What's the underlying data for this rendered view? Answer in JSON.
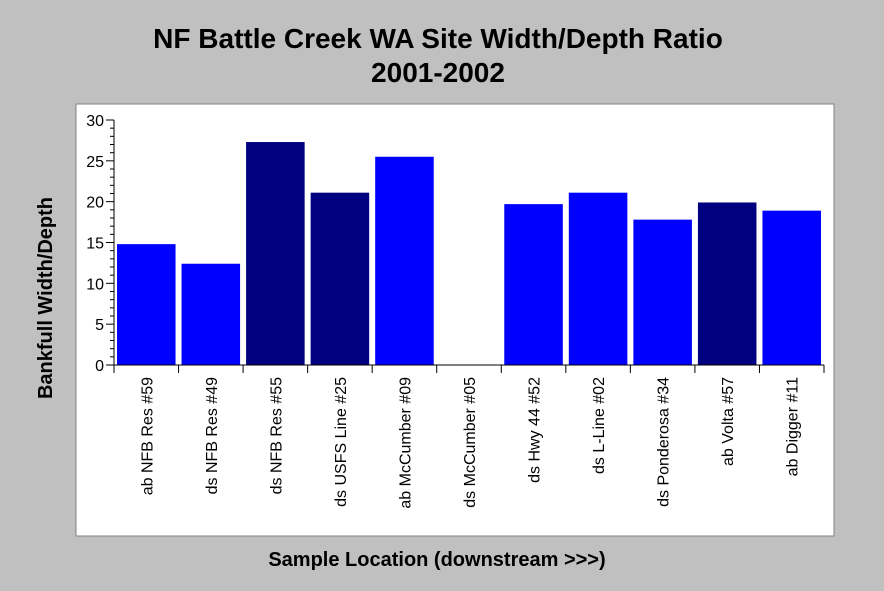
{
  "chart_data": {
    "type": "bar",
    "title_line1": "NF Battle Creek WA Site Width/Depth Ratio",
    "title_line2": "2001-2002",
    "xlabel": "Sample Location (downstream >>>)",
    "ylabel": "Bankfull Width/Depth",
    "ylim": [
      0,
      30
    ],
    "yticks": [
      0,
      5,
      10,
      15,
      20,
      25,
      30
    ],
    "grid": false,
    "legend": "none",
    "categories": [
      "ab NFB Res #59",
      "ds NFB Res #49",
      "ds NFB Res #55",
      "ds USFS Line #25",
      "ab McCumber #09",
      "ds McCumber #05",
      "ds Hwy 44 #52",
      "ds L-Line #02",
      "ds Ponderosa #34",
      "ab Volta #57",
      "ab Digger #11"
    ],
    "values": [
      14.8,
      12.4,
      27.3,
      21.1,
      25.5,
      0,
      19.7,
      21.1,
      17.8,
      19.9,
      18.9
    ],
    "colors": [
      "#0000ff",
      "#0000ff",
      "#000080",
      "#000080",
      "#0000ff",
      "#0000ff",
      "#0000ff",
      "#0000ff",
      "#0000ff",
      "#000080",
      "#0000ff"
    ]
  }
}
